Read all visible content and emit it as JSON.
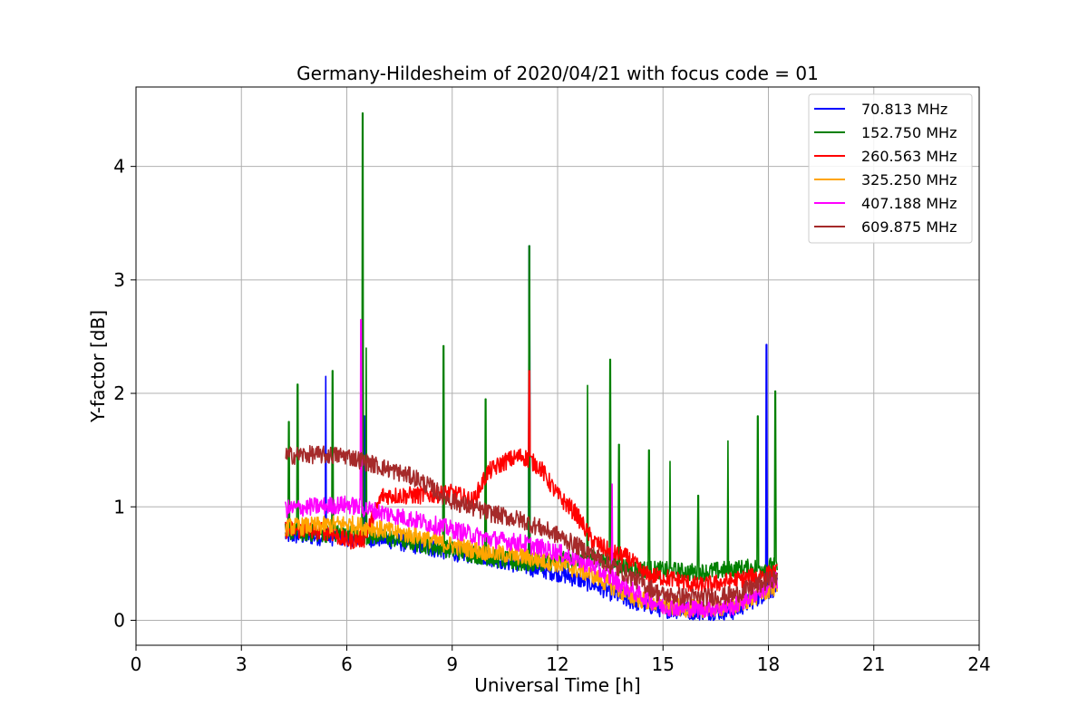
{
  "chart_data": {
    "type": "line",
    "title": "Germany-Hildesheim of 2020/04/21 with focus code = 01",
    "xlabel": "Universal Time [h]",
    "ylabel": "Y-factor [dB]",
    "xlim": [
      0,
      24
    ],
    "ylim": [
      -0.22,
      4.7
    ],
    "xticks": [
      0,
      3,
      6,
      9,
      12,
      15,
      18,
      21,
      24
    ],
    "yticks": [
      0,
      1,
      2,
      3,
      4
    ],
    "grid": true,
    "legend_position": "top-right",
    "series": [
      {
        "name": " 70.813 MHz",
        "color": "#0000ff",
        "x": [
          4.25,
          5.0,
          6.0,
          7.0,
          8.0,
          9.0,
          10.0,
          11.0,
          12.0,
          13.0,
          14.0,
          15.0,
          16.0,
          17.0,
          18.25
        ],
        "y": [
          0.75,
          0.74,
          0.73,
          0.72,
          0.66,
          0.6,
          0.56,
          0.48,
          0.42,
          0.32,
          0.18,
          0.1,
          0.08,
          0.08,
          0.3
        ],
        "spikes": [
          [
            5.4,
            2.15
          ],
          [
            6.5,
            1.8
          ],
          [
            11.2,
            3.3
          ],
          [
            17.95,
            2.43
          ]
        ]
      },
      {
        "name": "152.750 MHz",
        "color": "#008000",
        "x": [
          4.25,
          5.0,
          6.0,
          7.0,
          8.0,
          9.0,
          10.0,
          11.0,
          12.0,
          13.0,
          14.0,
          15.0,
          16.0,
          17.0,
          18.25
        ],
        "y": [
          0.78,
          0.77,
          0.76,
          0.74,
          0.68,
          0.62,
          0.56,
          0.5,
          0.52,
          0.56,
          0.46,
          0.44,
          0.42,
          0.45,
          0.48
        ],
        "spikes": [
          [
            4.35,
            1.75
          ],
          [
            4.6,
            2.08
          ],
          [
            5.6,
            2.2
          ],
          [
            6.45,
            4.47
          ],
          [
            6.55,
            2.4
          ],
          [
            8.75,
            2.42
          ],
          [
            9.95,
            1.95
          ],
          [
            11.2,
            3.3
          ],
          [
            12.85,
            2.07
          ],
          [
            13.5,
            2.3
          ],
          [
            13.75,
            1.55
          ],
          [
            14.6,
            1.5
          ],
          [
            15.2,
            1.4
          ],
          [
            16.0,
            1.1
          ],
          [
            16.85,
            1.58
          ],
          [
            17.7,
            1.8
          ],
          [
            18.2,
            2.02
          ]
        ]
      },
      {
        "name": "260.563 MHz",
        "color": "#ff0000",
        "x": [
          4.25,
          5.0,
          5.5,
          6.0,
          6.5,
          7.0,
          8.0,
          9.0,
          9.6,
          10.0,
          10.5,
          11.0,
          11.5,
          12.0,
          12.5,
          13.0,
          13.5,
          14.0,
          14.5,
          15.0,
          15.5,
          16.0,
          17.0,
          18.25
        ],
        "y": [
          0.8,
          0.79,
          0.78,
          0.7,
          0.72,
          1.1,
          1.1,
          1.12,
          1.05,
          1.3,
          1.4,
          1.45,
          1.35,
          1.1,
          0.95,
          0.7,
          0.6,
          0.55,
          0.4,
          0.38,
          0.35,
          0.3,
          0.35,
          0.42
        ],
        "spikes": [
          [
            11.2,
            2.2
          ]
        ]
      },
      {
        "name": "325.250 MHz",
        "color": "#ffa500",
        "x": [
          4.25,
          5.0,
          6.0,
          7.0,
          8.0,
          9.0,
          10.0,
          11.0,
          12.0,
          13.0,
          14.0,
          15.0,
          16.0,
          17.0,
          18.25
        ],
        "y": [
          0.82,
          0.83,
          0.85,
          0.8,
          0.74,
          0.66,
          0.6,
          0.56,
          0.5,
          0.4,
          0.22,
          0.12,
          0.1,
          0.12,
          0.3
        ],
        "spikes": []
      },
      {
        "name": "407.188 MHz",
        "color": "#ff00ff",
        "x": [
          4.25,
          5.0,
          6.0,
          7.0,
          8.0,
          9.0,
          10.0,
          11.0,
          12.0,
          13.0,
          14.0,
          15.0,
          16.0,
          17.0,
          18.25
        ],
        "y": [
          0.98,
          1.0,
          1.02,
          0.95,
          0.88,
          0.8,
          0.72,
          0.68,
          0.6,
          0.48,
          0.28,
          0.12,
          0.1,
          0.12,
          0.35
        ],
        "spikes": [
          [
            6.4,
            2.65
          ],
          [
            13.55,
            1.2
          ]
        ]
      },
      {
        "name": "609.875 MHz",
        "color": "#a52a2a",
        "x": [
          4.25,
          5.0,
          6.0,
          7.0,
          8.0,
          9.0,
          10.0,
          11.0,
          12.0,
          13.0,
          14.0,
          15.0,
          16.0,
          17.0,
          18.25
        ],
        "y": [
          1.45,
          1.46,
          1.45,
          1.35,
          1.25,
          1.05,
          0.95,
          0.88,
          0.75,
          0.58,
          0.4,
          0.22,
          0.2,
          0.22,
          0.38
        ],
        "spikes": []
      }
    ]
  }
}
